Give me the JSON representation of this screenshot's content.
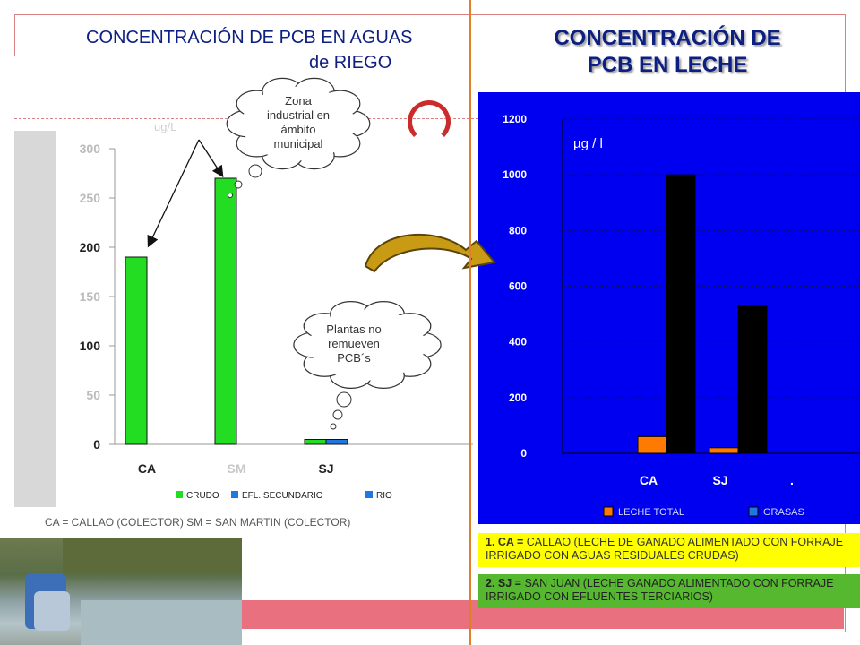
{
  "left_chart": {
    "title_line1": "CONCENTRACIÓN DE PCB EN AGUAS",
    "title_line2": "de RIEGO",
    "unit_label": "ug/L",
    "footer": "CA = CALLAO (COLECTOR)    SM = SAN MARTIN  (COLECTOR)",
    "callout_industrial": [
      "Zona",
      "industrial en",
      "ámbito",
      "municipal"
    ],
    "callout_plants": [
      "Plantas no",
      "remueven",
      "PCB´s"
    ]
  },
  "right_chart": {
    "title_line1": "CONCENTRACIÓN DE",
    "title_line2": "PCB EN LECHE",
    "unit_label": "µg / l",
    "note1_key": "1.  CA =",
    "note1_text": " CALLAO (LECHE DE GANADO ALIMENTADO CON FORRAJE IRRIGADO CON AGUAS RESIDUALES CRUDAS)",
    "note2_key": "2. SJ =",
    "note2_text": " SAN JUAN (LECHE GANADO ALIMENTADO CON FORRAJE IRRIGADO CON EFLUENTES TERCIARIOS)"
  },
  "chart_data": [
    {
      "type": "bar",
      "categories": [
        "CA",
        "SM",
        "SJ"
      ],
      "series": [
        {
          "name": "CRUDO",
          "color": "#22dd22",
          "values": [
            190,
            270,
            5
          ]
        },
        {
          "name": "EFL. SECUNDARIO",
          "color": "#1e78dd",
          "values": [
            0,
            0,
            5
          ]
        },
        {
          "name": "RIO",
          "color": "#1e78dd",
          "values": [
            0,
            0,
            0
          ]
        }
      ],
      "ylim": [
        0,
        300
      ],
      "yticks": [
        0,
        50,
        100,
        150,
        200,
        250,
        300
      ],
      "legend_position": "bottom"
    },
    {
      "type": "bar",
      "categories": [
        "CA",
        "SJ",
        "."
      ],
      "series": [
        {
          "name": "LECHE TOTAL",
          "color": "#ff7a00",
          "values": [
            60,
            20,
            0
          ]
        },
        {
          "name": "GRASAS",
          "color": "#000000",
          "values": [
            1000,
            530,
            0
          ]
        }
      ],
      "ylim": [
        0,
        1200
      ],
      "yticks": [
        0,
        200,
        400,
        600,
        800,
        1000,
        1200
      ],
      "grid": true,
      "legend_position": "bottom"
    }
  ]
}
